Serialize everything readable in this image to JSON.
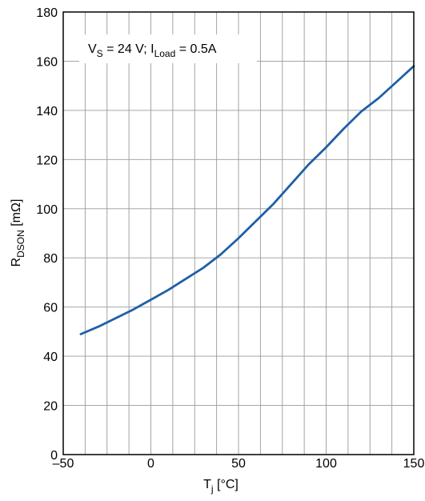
{
  "chart_data": {
    "type": "line",
    "title": "",
    "annotation": {
      "parts": [
        {
          "text": "V",
          "sub": false
        },
        {
          "text": "S",
          "sub": true
        },
        {
          "text": " = 24 V; I",
          "sub": false
        },
        {
          "text": "Load",
          "sub": true
        },
        {
          "text": " = 0.5A",
          "sub": false
        }
      ]
    },
    "xlabel": {
      "parts": [
        {
          "text": "T",
          "sub": false
        },
        {
          "text": "j",
          "sub": true
        },
        {
          "text": " [°C]",
          "sub": false
        }
      ]
    },
    "ylabel": {
      "parts": [
        {
          "text": "R",
          "sub": false
        },
        {
          "text": "DSON",
          "sub": true
        },
        {
          "text": " [mΩ]",
          "sub": false
        }
      ]
    },
    "xlim": [
      -50,
      150
    ],
    "ylim": [
      0,
      180
    ],
    "xticks": [
      -50,
      0,
      50,
      100,
      150
    ],
    "xtick_labels": [
      "–50",
      "0",
      "50",
      "100",
      "150"
    ],
    "yticks": [
      0,
      20,
      40,
      60,
      80,
      100,
      120,
      140,
      160,
      180
    ],
    "ytick_labels": [
      "0",
      "20",
      "40",
      "60",
      "80",
      "100",
      "120",
      "140",
      "160",
      "180"
    ],
    "grid": true,
    "grid_x_step": 12.5,
    "grid_y_step": 20,
    "line_color": "#1f5fa6",
    "series": [
      {
        "x": [
          -40,
          -30,
          -20,
          -10,
          0,
          10,
          20,
          30,
          40,
          50,
          60,
          70,
          80,
          90,
          100,
          110,
          120,
          130,
          140,
          150
        ],
        "values": [
          49,
          52,
          55.5,
          59,
          63,
          67,
          71.5,
          76,
          81.5,
          88,
          95,
          102,
          110,
          118,
          125,
          132.5,
          139.5,
          145,
          151.5,
          158
        ]
      }
    ]
  }
}
